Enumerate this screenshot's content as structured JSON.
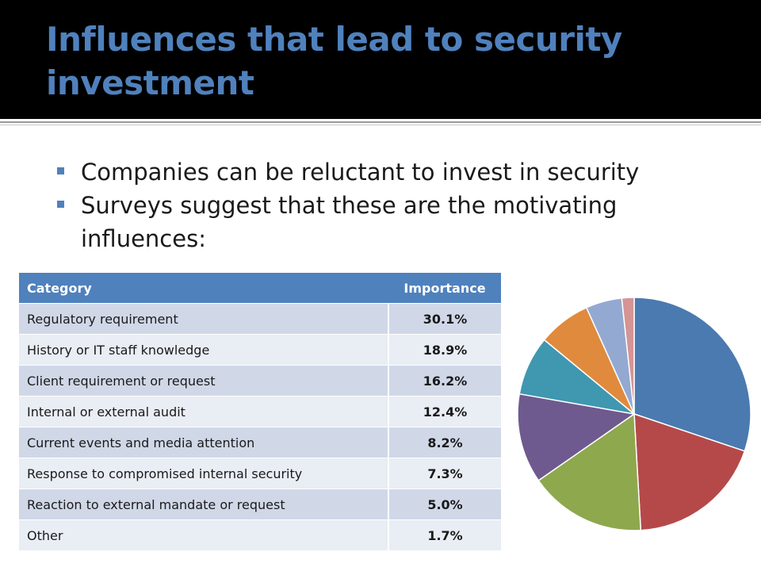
{
  "slide": {
    "title": "Influences that lead to security investment",
    "bullets": [
      "Companies can be reluctant to invest in security",
      "Surveys suggest that these are the motivating influences:"
    ]
  },
  "table": {
    "headers": [
      "Category",
      "Importance"
    ],
    "rows": [
      {
        "category": "Regulatory requirement",
        "importance": "30.1%"
      },
      {
        "category": "History or IT staff knowledge",
        "importance": "18.9%"
      },
      {
        "category": "Client requirement or request",
        "importance": "16.2%"
      },
      {
        "category": "Internal or external audit",
        "importance": "12.4%"
      },
      {
        "category": "Current events and media attention",
        "importance": "8.2%"
      },
      {
        "category": "Response to compromised internal security",
        "importance": "7.3%"
      },
      {
        "category": "Reaction to external mandate or request",
        "importance": "5.0%"
      },
      {
        "category": "Other",
        "importance": "1.7%"
      }
    ]
  },
  "chart_data": {
    "type": "pie",
    "categories": [
      "Regulatory requirement",
      "History or IT staff knowledge",
      "Client requirement or request",
      "Internal or external audit",
      "Current events and media attention",
      "Response to compromised internal security",
      "Reaction to external mandate or request",
      "Other"
    ],
    "values": [
      30.1,
      18.9,
      16.2,
      12.4,
      8.2,
      7.3,
      5.0,
      1.7
    ],
    "colors": [
      "#4a7ab0",
      "#b5494a",
      "#8ea84e",
      "#6e5a8e",
      "#3f97b0",
      "#e08a3d",
      "#93a9d2",
      "#d59495"
    ],
    "start_angle_deg": 0,
    "direction": "clockwise"
  },
  "colors": {
    "title": "#4f81bd",
    "title_bar": "#000000",
    "table_header": "#4f81bd",
    "row_odd": "#d0d8e8",
    "row_even": "#e9edf4",
    "bullet_marker": "#4f81bd"
  }
}
